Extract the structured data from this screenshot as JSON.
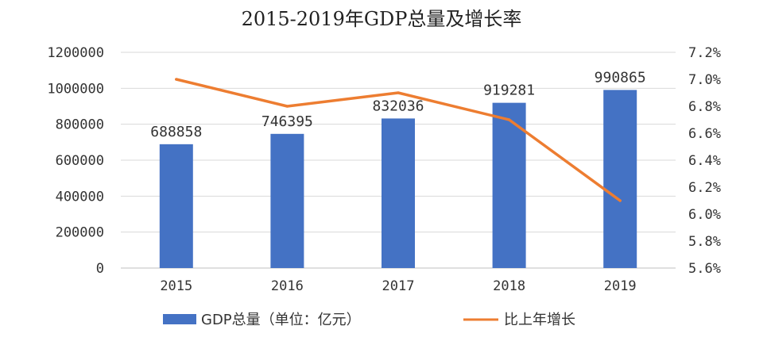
{
  "chart_data": {
    "type": "bar",
    "title": "2015-2019年GDP总量及增长率",
    "categories": [
      "2015",
      "2016",
      "2017",
      "2018",
      "2019"
    ],
    "series": [
      {
        "name": "GDP总量（单位：亿元）",
        "type": "bar",
        "axis": "left",
        "values": [
          688858,
          746395,
          832036,
          919281,
          990865
        ],
        "data_labels": [
          "688858",
          "746395",
          "832036",
          "919281",
          "990865"
        ],
        "color": "#4472C4"
      },
      {
        "name": "比上年增长",
        "type": "line",
        "axis": "right",
        "values": [
          7.0,
          6.8,
          6.9,
          6.7,
          6.1
        ],
        "color": "#ED7D31"
      }
    ],
    "y_left": {
      "ylim": [
        0,
        1200000
      ],
      "ticks": [
        "0",
        "200000",
        "400000",
        "600000",
        "800000",
        "1000000",
        "1200000"
      ]
    },
    "y_right": {
      "ylim": [
        5.6,
        7.2
      ],
      "unit": "%",
      "ticks": [
        "5.6%",
        "5.8%",
        "6.0%",
        "6.2%",
        "6.4%",
        "6.6%",
        "6.8%",
        "7.0%",
        "7.2%"
      ]
    },
    "grid": true,
    "legend": "bottom"
  }
}
